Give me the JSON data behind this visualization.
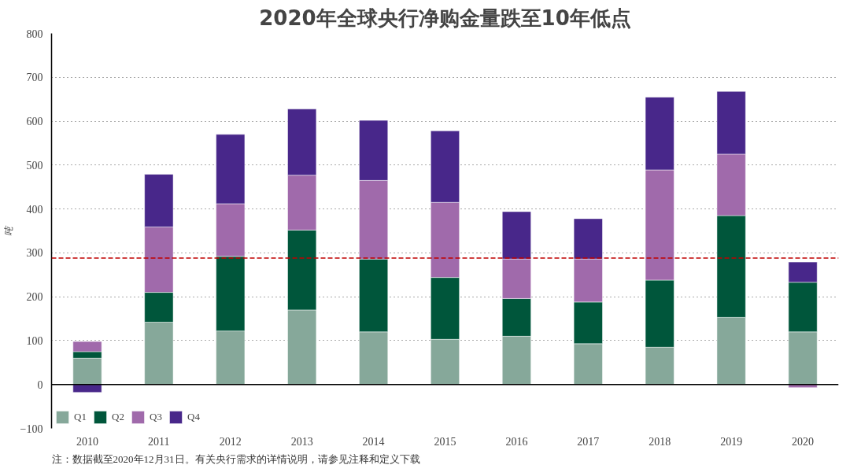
{
  "chart_data": {
    "type": "bar",
    "stacked": true,
    "title": "2020年全球央行净购金量跌至10年低点",
    "ylabel": "吨",
    "categories": [
      "2010",
      "2011",
      "2012",
      "2013",
      "2014",
      "2015",
      "2016",
      "2017",
      "2018",
      "2019",
      "2020"
    ],
    "series": [
      {
        "name": "Q1",
        "color": "#86a89a",
        "values": [
          60,
          142,
          122,
          170,
          120,
          103,
          110,
          93,
          85,
          153,
          120
        ]
      },
      {
        "name": "Q2",
        "color": "#00563b",
        "values": [
          15,
          68,
          170,
          182,
          166,
          141,
          86,
          95,
          153,
          232,
          113
        ]
      },
      {
        "name": "Q3",
        "color": "#a06aab",
        "values": [
          23,
          149,
          120,
          125,
          179,
          171,
          90,
          98,
          251,
          140,
          -7
        ]
      },
      {
        "name": "Q4",
        "color": "#48278a",
        "values": [
          -18,
          120,
          158,
          151,
          137,
          163,
          108,
          92,
          166,
          143,
          46
        ]
      }
    ],
    "ylim": [
      -100,
      800
    ],
    "yticks": [
      -100,
      0,
      100,
      200,
      300,
      400,
      500,
      600,
      700,
      800
    ],
    "grid": "y",
    "legend": "bottom left",
    "ref_lines": [
      {
        "axis": "y",
        "value": 288,
        "color": "#c00000",
        "line_style": "dashed"
      }
    ],
    "annotations": [
      "注：数据截至2020年12月31日。有关央行需求的详情说明，请参见注释和定义下载"
    ]
  }
}
